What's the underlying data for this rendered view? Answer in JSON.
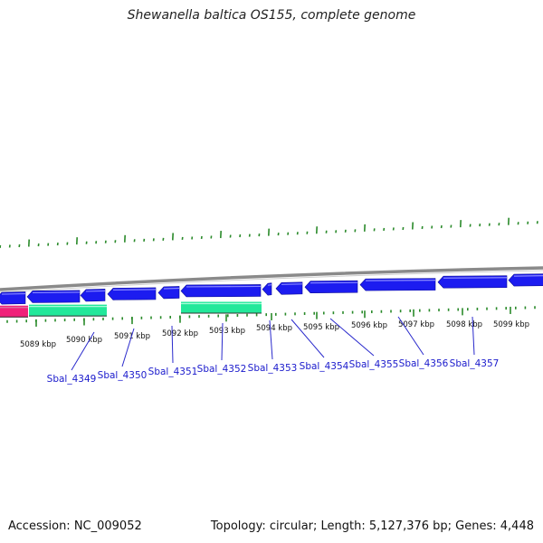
{
  "title": "Shewanella baltica OS155, complete genome",
  "footer": {
    "accession": "Accession: NC_009052",
    "summary": "Topology: circular; Length: 5,127,376 bp; Genes: 4,448"
  },
  "colors": {
    "backbone": "#8a8a8a",
    "cds": "#1c1cf0",
    "rna_teal": "#22e89a",
    "rna_pink": "#f0207a",
    "tick": "#2a8a2a",
    "label_line": "#2a2acc"
  },
  "scale_labels": [
    "5089 kbp",
    "5090 kbp",
    "5091 kbp",
    "5092 kbp",
    "5093 kbp",
    "5094 kbp",
    "5095 kbp",
    "5096 kbp",
    "5097 kbp",
    "5098 kbp",
    "5099 kbp"
  ],
  "gene_labels": [
    "Sbal_4349",
    "Sbal_4350",
    "Sbal_4351",
    "Sbal_4352",
    "Sbal_4353",
    "Sbal_4354",
    "Sbal_4355",
    "Sbal_4356",
    "Sbal_4357"
  ]
}
